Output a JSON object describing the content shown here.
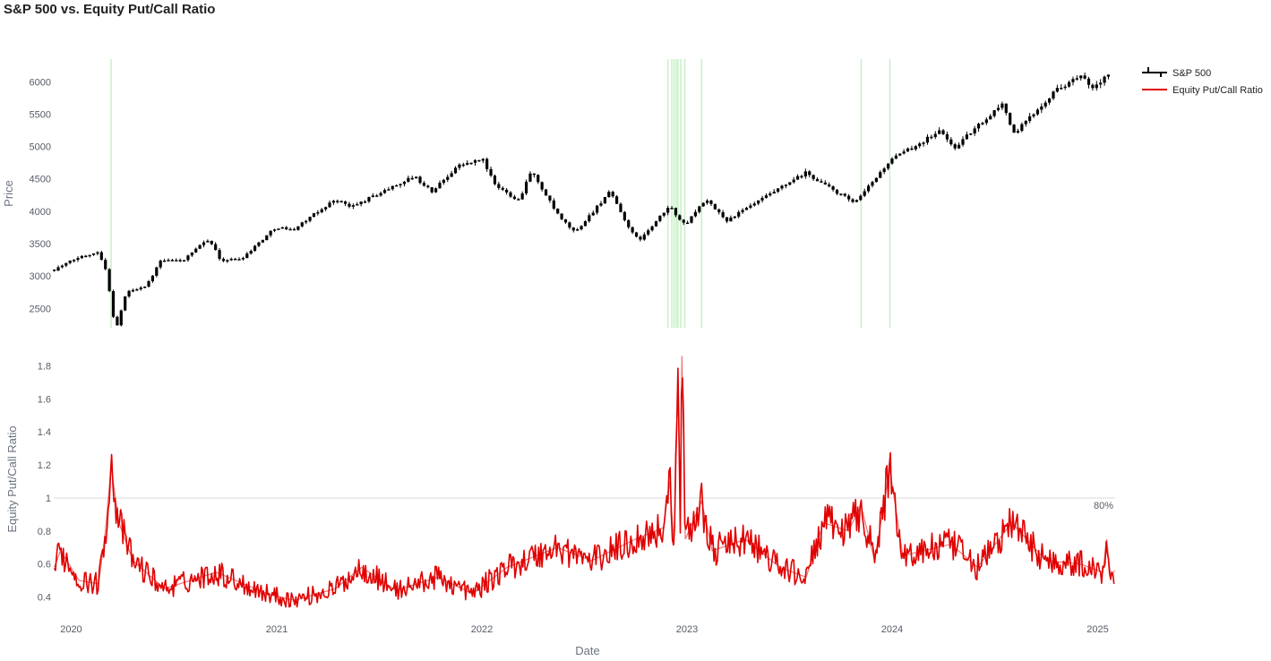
{
  "chart_data": {
    "type": "line",
    "title": "S&P 500 vs. Equity Put/Call Ratio",
    "xlabel": "Date",
    "x_ticks": [
      "2020",
      "2021",
      "2022",
      "2023",
      "2024",
      "2025"
    ],
    "x_range": [
      "2019-12-01",
      "2025-02-01"
    ],
    "legend": [
      "S&P 500",
      "Equity Put/Call Ratio"
    ],
    "legend_position": "top-right",
    "colors": {
      "sp500": "#000000",
      "ratio": "#e00000",
      "highlight": "#c8efc8",
      "reference": "#d9d9d9"
    },
    "top_panel": {
      "series_name": "S&P 500",
      "chart_kind": "candlestick",
      "ylabel": "Price",
      "ylim": [
        2200,
        6350
      ],
      "y_ticks": [
        2500,
        3000,
        3500,
        4000,
        4500,
        5000,
        5500,
        6000
      ],
      "anchors": [
        [
          "2019-12-02",
          3100
        ],
        [
          "2020-01-15",
          3290
        ],
        [
          "2020-02-19",
          3380
        ],
        [
          "2020-03-03",
          3090
        ],
        [
          "2020-03-16",
          2380
        ],
        [
          "2020-03-23",
          2240
        ],
        [
          "2020-04-08",
          2750
        ],
        [
          "2020-05-15",
          2860
        ],
        [
          "2020-06-08",
          3230
        ],
        [
          "2020-07-20",
          3250
        ],
        [
          "2020-09-02",
          3580
        ],
        [
          "2020-09-23",
          3240
        ],
        [
          "2020-10-30",
          3270
        ],
        [
          "2020-12-31",
          3760
        ],
        [
          "2021-01-29",
          3710
        ],
        [
          "2021-04-16",
          4190
        ],
        [
          "2021-05-12",
          4060
        ],
        [
          "2021-09-02",
          4540
        ],
        [
          "2021-10-04",
          4300
        ],
        [
          "2021-11-18",
          4700
        ],
        [
          "2022-01-03",
          4800
        ],
        [
          "2022-01-24",
          4400
        ],
        [
          "2022-03-08",
          4170
        ],
        [
          "2022-03-29",
          4630
        ],
        [
          "2022-05-19",
          3900
        ],
        [
          "2022-06-16",
          3670
        ],
        [
          "2022-08-16",
          4300
        ],
        [
          "2022-09-30",
          3590
        ],
        [
          "2022-10-12",
          3580
        ],
        [
          "2022-12-01",
          4080
        ],
        [
          "2022-12-28",
          3780
        ],
        [
          "2023-02-02",
          4180
        ],
        [
          "2023-03-13",
          3860
        ],
        [
          "2023-07-31",
          4590
        ],
        [
          "2023-10-27",
          4120
        ],
        [
          "2023-12-28",
          4780
        ],
        [
          "2024-03-28",
          5250
        ],
        [
          "2024-04-19",
          4970
        ],
        [
          "2024-07-16",
          5670
        ],
        [
          "2024-08-05",
          5190
        ],
        [
          "2024-10-15",
          5850
        ],
        [
          "2024-11-11",
          6000
        ],
        [
          "2024-12-06",
          6090
        ],
        [
          "2024-12-19",
          5870
        ],
        [
          "2025-01-24",
          6120
        ]
      ],
      "highlight_dates": [
        "2020-03-12",
        "2022-11-28",
        "2022-12-05",
        "2022-12-09",
        "2022-12-13",
        "2022-12-16",
        "2022-12-21",
        "2022-12-28",
        "2023-01-27",
        "2023-11-07",
        "2023-12-28"
      ]
    },
    "bottom_panel": {
      "series_name": "Equity Put/Call Ratio",
      "ylabel": "Equity Put/Call Ratio",
      "ylim": [
        0.3,
        1.9
      ],
      "y_ticks": [
        0.4,
        0.6,
        0.8,
        1,
        1.2,
        1.4,
        1.6,
        1.8
      ],
      "reference_line": {
        "y": 1,
        "label": "80%"
      },
      "anchors": [
        [
          "2019-12-02",
          0.58
        ],
        [
          "2019-12-13",
          0.68
        ],
        [
          "2020-01-15",
          0.5
        ],
        [
          "2020-02-19",
          0.48
        ],
        [
          "2020-03-02",
          0.8
        ],
        [
          "2020-03-12",
          1.19
        ],
        [
          "2020-03-26",
          0.85
        ],
        [
          "2020-04-20",
          0.62
        ],
        [
          "2020-06-15",
          0.45
        ],
        [
          "2020-09-15",
          0.55
        ],
        [
          "2020-12-15",
          0.42
        ],
        [
          "2021-02-01",
          0.38
        ],
        [
          "2021-04-15",
          0.45
        ],
        [
          "2021-06-01",
          0.58
        ],
        [
          "2021-08-01",
          0.44
        ],
        [
          "2021-10-15",
          0.52
        ],
        [
          "2021-12-15",
          0.42
        ],
        [
          "2022-02-15",
          0.58
        ],
        [
          "2022-05-15",
          0.7
        ],
        [
          "2022-07-15",
          0.62
        ],
        [
          "2022-10-01",
          0.75
        ],
        [
          "2022-11-20",
          0.82
        ],
        [
          "2022-12-01",
          1.1
        ],
        [
          "2022-12-09",
          0.72
        ],
        [
          "2022-12-16",
          1.68
        ],
        [
          "2022-12-20",
          0.9
        ],
        [
          "2022-12-23",
          1.86
        ],
        [
          "2022-12-29",
          0.75
        ],
        [
          "2023-01-27",
          0.98
        ],
        [
          "2023-02-15",
          0.68
        ],
        [
          "2023-04-15",
          0.75
        ],
        [
          "2023-06-15",
          0.58
        ],
        [
          "2023-08-01",
          0.52
        ],
        [
          "2023-09-01",
          0.85
        ],
        [
          "2023-10-15",
          0.8
        ],
        [
          "2023-11-07",
          0.95
        ],
        [
          "2023-12-01",
          0.62
        ],
        [
          "2023-12-28",
          1.18
        ],
        [
          "2024-01-20",
          0.65
        ],
        [
          "2024-04-15",
          0.72
        ],
        [
          "2024-06-01",
          0.58
        ],
        [
          "2024-08-01",
          0.85
        ],
        [
          "2024-10-01",
          0.62
        ],
        [
          "2024-12-01",
          0.6
        ],
        [
          "2025-01-10",
          0.55
        ],
        [
          "2025-01-17",
          0.75
        ],
        [
          "2025-01-24",
          0.52
        ],
        [
          "2025-01-31",
          0.56
        ]
      ]
    }
  }
}
